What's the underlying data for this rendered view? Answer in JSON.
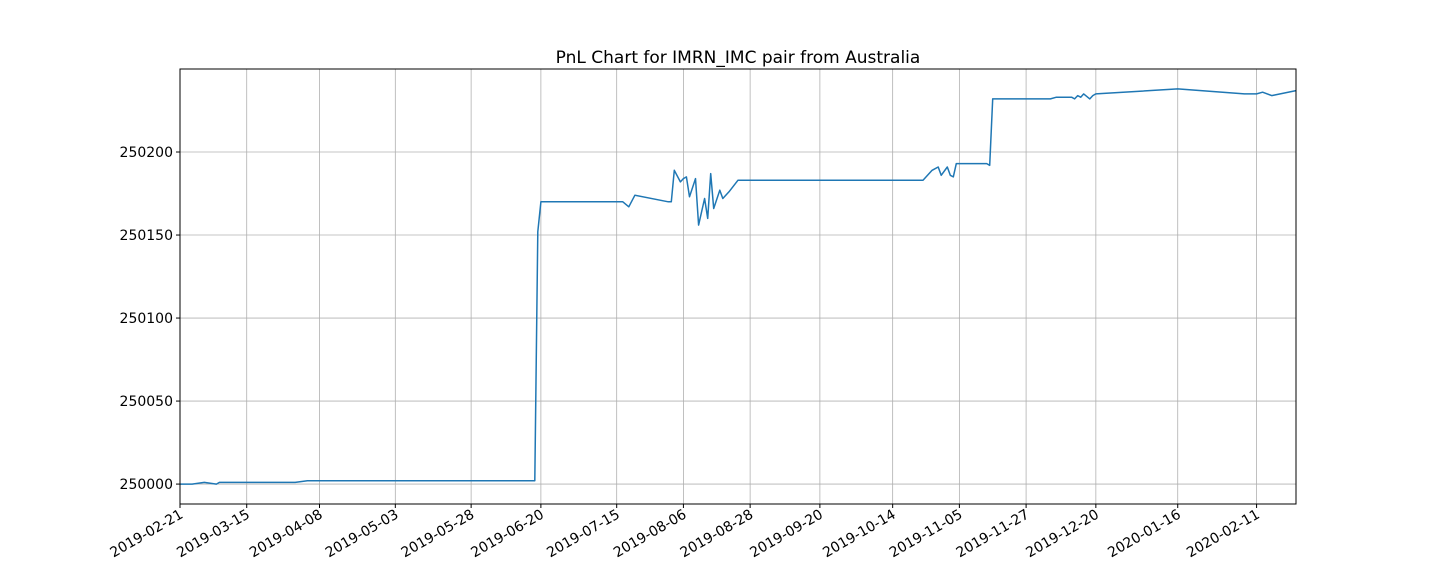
{
  "chart_data": {
    "type": "line",
    "title": "PnL Chart for IMRN_IMC pair from Australia",
    "xlabel": "",
    "ylabel": "",
    "grid": true,
    "xlim": [
      "2019-02-21",
      "2020-02-24"
    ],
    "ylim": [
      249988,
      250250
    ],
    "x_ticks": [
      "2019-02-21",
      "2019-03-15",
      "2019-04-08",
      "2019-05-03",
      "2019-05-28",
      "2019-06-20",
      "2019-07-15",
      "2019-08-06",
      "2019-08-28",
      "2019-09-20",
      "2019-10-14",
      "2019-11-05",
      "2019-11-27",
      "2019-12-20",
      "2020-01-16",
      "2020-02-11"
    ],
    "y_ticks": [
      250000,
      250050,
      250100,
      250150,
      250200
    ],
    "series": [
      {
        "color": "#1f77b4",
        "x": [
          "2019-02-21",
          "2019-02-25",
          "2019-03-01",
          "2019-03-05",
          "2019-03-06",
          "2019-03-15",
          "2019-03-25",
          "2019-03-31",
          "2019-04-04",
          "2019-04-08",
          "2019-05-03",
          "2019-05-28",
          "2019-06-15",
          "2019-06-18",
          "2019-06-19",
          "2019-06-20",
          "2019-07-15",
          "2019-07-17",
          "2019-07-19",
          "2019-07-21",
          "2019-08-01",
          "2019-08-02",
          "2019-08-03",
          "2019-08-05",
          "2019-08-06",
          "2019-08-07",
          "2019-08-08",
          "2019-08-10",
          "2019-08-11",
          "2019-08-13",
          "2019-08-14",
          "2019-08-15",
          "2019-08-16",
          "2019-08-18",
          "2019-08-19",
          "2019-08-21",
          "2019-08-24",
          "2019-08-28",
          "2019-09-20",
          "2019-10-14",
          "2019-10-24",
          "2019-10-27",
          "2019-10-29",
          "2019-10-30",
          "2019-11-01",
          "2019-11-02",
          "2019-11-03",
          "2019-11-04",
          "2019-11-05",
          "2019-11-14",
          "2019-11-15",
          "2019-11-16",
          "2019-11-18",
          "2019-11-27",
          "2019-12-03",
          "2019-12-05",
          "2019-12-07",
          "2019-12-08",
          "2019-12-09",
          "2019-12-11",
          "2019-12-12",
          "2019-12-13",
          "2019-12-14",
          "2019-12-15",
          "2019-12-16",
          "2019-12-18",
          "2019-12-19",
          "2019-12-20",
          "2020-01-16",
          "2020-02-07",
          "2020-02-09",
          "2020-02-11",
          "2020-02-13",
          "2020-02-16",
          "2020-02-24"
        ],
        "y": [
          250000,
          250000,
          250001,
          250000,
          250001,
          250001,
          250001,
          250001,
          250002,
          250002,
          250002,
          250002,
          250002,
          250002,
          250152,
          250170,
          250170,
          250170,
          250167,
          250174,
          250170,
          250170,
          250189,
          250182,
          250184,
          250185,
          250173,
          250184,
          250156,
          250172,
          250160,
          250187,
          250166,
          250177,
          250172,
          250176,
          250183,
          250183,
          250183,
          250183,
          250183,
          250189,
          250191,
          250186,
          250191,
          250186,
          250185,
          250193,
          250193,
          250193,
          250192,
          250232,
          250232,
          250232,
          250232,
          250232,
          250233,
          250233,
          250233,
          250233,
          250233,
          250232,
          250234,
          250233,
          250235,
          250232,
          250234,
          250235,
          250238,
          250235,
          250235,
          250235,
          250236,
          250234,
          250237
        ]
      }
    ]
  }
}
